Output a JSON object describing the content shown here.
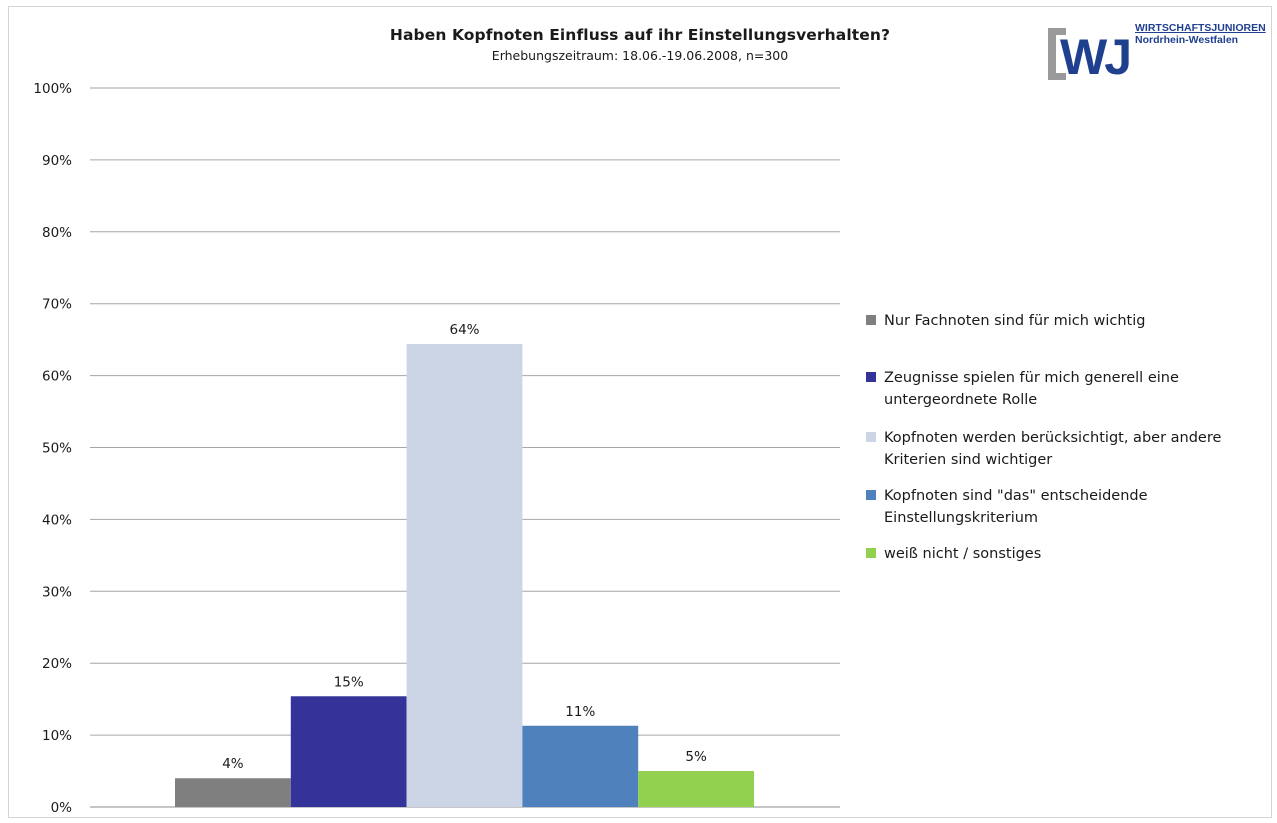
{
  "chart_data": {
    "type": "bar",
    "title": "Haben Kopfnoten Einfluss auf ihr Einstellungsverhalten?",
    "subtitle": "Erhebungszeitraum: 18.06.-19.06.2008, n=300",
    "ylim": [
      0,
      100
    ],
    "yticks": [
      "0%",
      "10%",
      "20%",
      "30%",
      "40%",
      "50%",
      "60%",
      "70%",
      "80%",
      "90%",
      "100%"
    ],
    "grid": true,
    "legend_position": "right",
    "series": [
      {
        "name": "Nur Fachnoten sind für mich wichtig",
        "value": 4,
        "label": "4%",
        "color": "#7f7f7f"
      },
      {
        "name": "Zeugnisse spielen für mich generell eine untergeordnete Rolle",
        "value": 15.4,
        "label": "15%",
        "color": "#333399"
      },
      {
        "name": "Kopfnoten werden berücksichtigt, aber andere Kriterien sind wichtiger",
        "value": 64.4,
        "label": "64%",
        "color": "#ccd5e6"
      },
      {
        "name": "Kopfnoten sind \"das\" entscheidende Einstellungskriterium",
        "value": 11.3,
        "label": "11%",
        "color": "#4f81bd"
      },
      {
        "name": "weiß nicht / sonstiges",
        "value": 5,
        "label": "5%",
        "color": "#92d050"
      }
    ]
  },
  "legend": {
    "items": [
      {
        "line1": "Nur Fachnoten sind für mich wichtig",
        "line2": ""
      },
      {
        "line1": "Zeugnisse spielen für mich generell eine",
        "line2": "untergeordnete Rolle"
      },
      {
        "line1": "Kopfnoten werden berücksichtigt, aber andere",
        "line2": "Kriterien sind wichtiger"
      },
      {
        "line1": "Kopfnoten sind \"das\" entscheidende",
        "line2": "Einstellungskriterium"
      },
      {
        "line1": "weiß nicht / sonstiges",
        "line2": ""
      }
    ]
  },
  "logo": {
    "mark": "WJ",
    "line1": "WIRTSCHAFTSJUNIOREN",
    "line2": "Nordrhein-Westfalen",
    "bracket_color": "#9a9a9a",
    "letter_color": "#1f3f8f"
  }
}
